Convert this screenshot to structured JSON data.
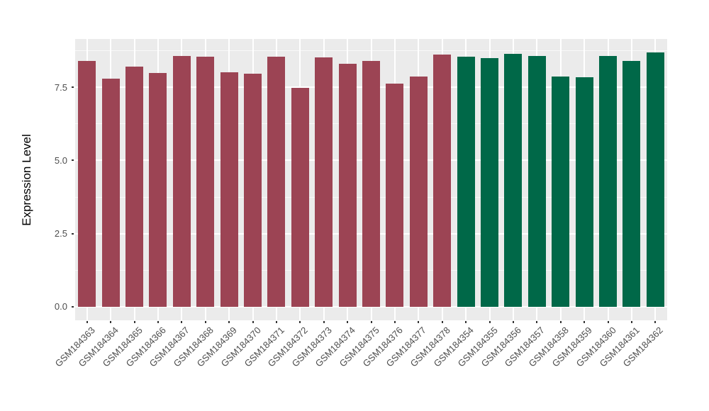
{
  "chart_data": {
    "type": "bar",
    "title": "",
    "xlabel": "",
    "ylabel": "Expression Level",
    "categories": [
      "GSM184363",
      "GSM184364",
      "GSM184365",
      "GSM184366",
      "GSM184367",
      "GSM184368",
      "GSM184369",
      "GSM184370",
      "GSM184371",
      "GSM184372",
      "GSM184373",
      "GSM184374",
      "GSM184375",
      "GSM184376",
      "GSM184377",
      "GSM184378",
      "GSM184354",
      "GSM184355",
      "GSM184356",
      "GSM184357",
      "GSM184358",
      "GSM184359",
      "GSM184360",
      "GSM184361",
      "GSM184362"
    ],
    "values": [
      8.4,
      7.8,
      8.2,
      7.98,
      8.56,
      8.54,
      8.02,
      7.96,
      8.54,
      7.49,
      8.51,
      8.3,
      8.4,
      7.62,
      7.86,
      8.61,
      8.54,
      8.5,
      8.63,
      8.56,
      7.86,
      7.84,
      8.56,
      8.4,
      8.7
    ],
    "groups": [
      "g1",
      "g1",
      "g1",
      "g1",
      "g1",
      "g1",
      "g1",
      "g1",
      "g1",
      "g1",
      "g1",
      "g1",
      "g1",
      "g1",
      "g1",
      "g1",
      "g2",
      "g2",
      "g2",
      "g2",
      "g2",
      "g2",
      "g2",
      "g2",
      "g2"
    ],
    "group_colors": {
      "g1": "#9C4454",
      "g2": "#006848"
    },
    "yticks": [
      0.0,
      2.5,
      5.0,
      7.5
    ],
    "yticks_minor": [
      1.25,
      3.75,
      6.25,
      8.75
    ],
    "ylim": [
      -0.46,
      9.15
    ],
    "legend": "none",
    "grid": "on",
    "colors": {
      "panel_background": "#EBEBEB",
      "gridline": "#FFFFFF",
      "tick_label": "#4D4D4D",
      "axis_title": "#000000"
    }
  }
}
